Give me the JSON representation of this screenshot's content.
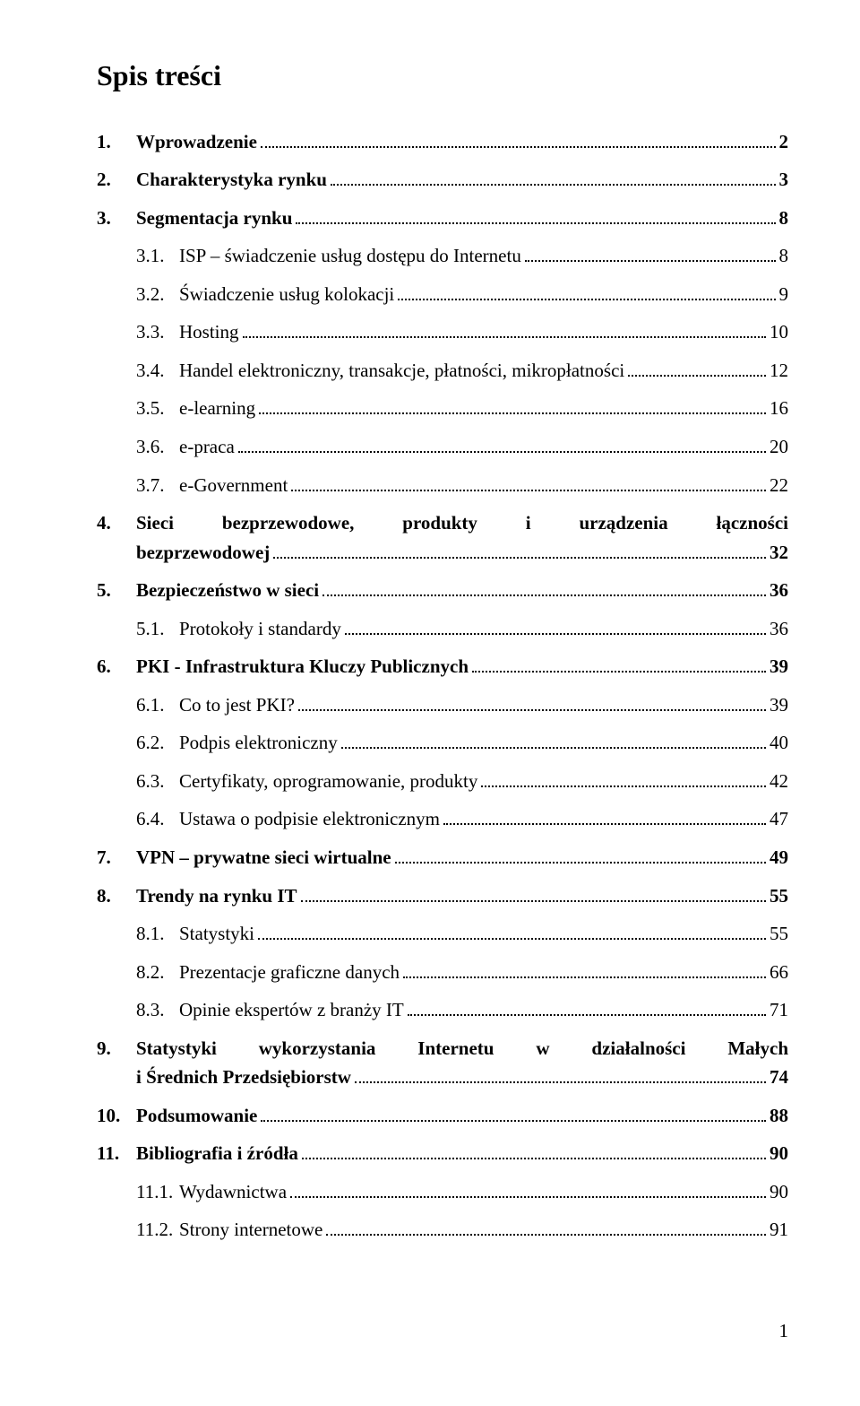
{
  "title": "Spis treści",
  "footer_page": "1",
  "entries": [
    {
      "level": 1,
      "num": "1.",
      "label": "Wprowadzenie",
      "page": "2"
    },
    {
      "level": 1,
      "num": "2.",
      "label": "Charakterystyka rynku",
      "page": "3"
    },
    {
      "level": 1,
      "num": "3.",
      "label": "Segmentacja rynku",
      "page": "8"
    },
    {
      "level": 2,
      "num": "3.1.",
      "label": "ISP – świadczenie usług dostępu do Internetu",
      "page": "8"
    },
    {
      "level": 2,
      "num": "3.2.",
      "label": "Świadczenie usług kolokacji",
      "page": "9"
    },
    {
      "level": 2,
      "num": "3.3.",
      "label": "Hosting",
      "page": "10"
    },
    {
      "level": 2,
      "num": "3.4.",
      "label": "Handel elektroniczny, transakcje, płatności, mikropłatności",
      "page": "12"
    },
    {
      "level": 2,
      "num": "3.5.",
      "label": "e-learning",
      "page": "16"
    },
    {
      "level": 2,
      "num": "3.6.",
      "label": "e-praca",
      "page": "20"
    },
    {
      "level": 2,
      "num": "3.7.",
      "label": "e-Government",
      "page": "22"
    },
    {
      "level": 1,
      "num": "4.",
      "label_lines": [
        "Sieci bezprzewodowe, produkty i urządzenia łączności",
        "bezprzewodowej"
      ],
      "page": "32"
    },
    {
      "level": 1,
      "num": "5.",
      "label": "Bezpieczeństwo w sieci",
      "page": "36"
    },
    {
      "level": 2,
      "num": "5.1.",
      "label": "Protokoły i standardy",
      "page": "36"
    },
    {
      "level": 1,
      "num": "6.",
      "label": "PKI - Infrastruktura Kluczy Publicznych",
      "page": "39"
    },
    {
      "level": 2,
      "num": "6.1.",
      "label": "Co to jest PKI?",
      "page": "39"
    },
    {
      "level": 2,
      "num": "6.2.",
      "label": "Podpis elektroniczny",
      "page": "40"
    },
    {
      "level": 2,
      "num": "6.3.",
      "label": "Certyfikaty, oprogramowanie, produkty",
      "page": "42"
    },
    {
      "level": 2,
      "num": "6.4.",
      "label": "Ustawa o podpisie elektronicznym",
      "page": "47"
    },
    {
      "level": 1,
      "num": "7.",
      "label": "VPN – prywatne sieci wirtualne",
      "page": "49"
    },
    {
      "level": 1,
      "num": "8.",
      "label": "Trendy na rynku IT",
      "page": "55"
    },
    {
      "level": 2,
      "num": "8.1.",
      "label": "Statystyki",
      "page": "55"
    },
    {
      "level": 2,
      "num": "8.2.",
      "label": "Prezentacje graficzne danych",
      "page": "66"
    },
    {
      "level": 2,
      "num": "8.3.",
      "label": "Opinie ekspertów z branży IT",
      "page": "71"
    },
    {
      "level": 1,
      "num": "9.",
      "label_lines": [
        "Statystyki wykorzystania Internetu w działalności Małych",
        "i Średnich Przedsiębiorstw"
      ],
      "page": "74"
    },
    {
      "level": 1,
      "num": "10.",
      "label": "Podsumowanie",
      "page": "88"
    },
    {
      "level": 1,
      "num": "11.",
      "label": "Bibliografia i źródła",
      "page": "90"
    },
    {
      "level": 2,
      "num": "11.1.",
      "label": "Wydawnictwa",
      "page": "90"
    },
    {
      "level": 2,
      "num": "11.2.",
      "label": "Strony internetowe",
      "page": "91"
    }
  ]
}
